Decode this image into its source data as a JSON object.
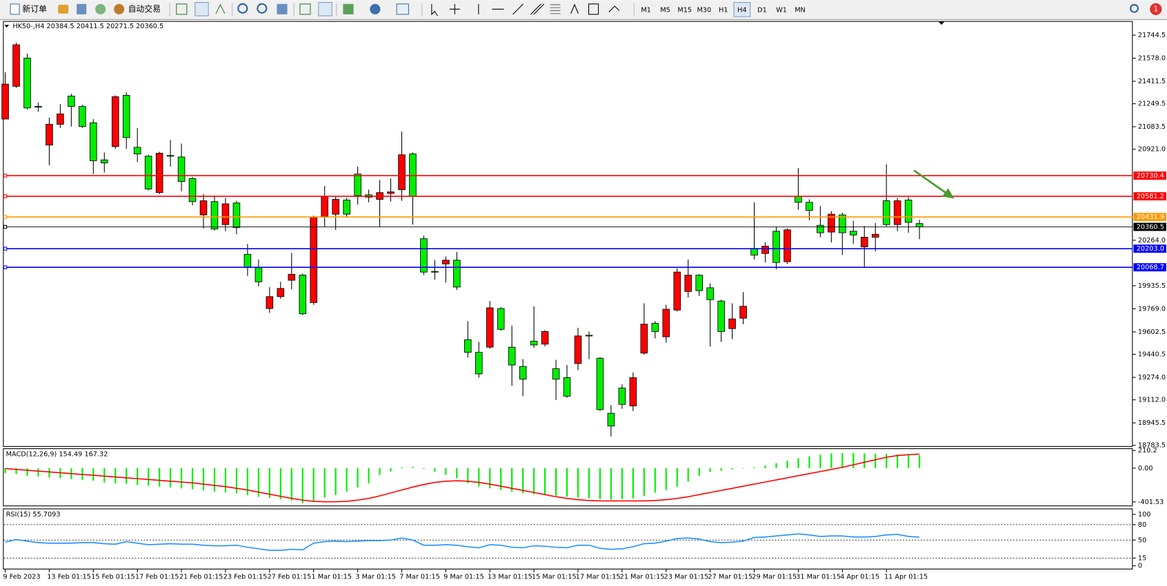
{
  "toolbar": {
    "new_order": "新订单",
    "auto_trading": "自动交易",
    "timeframes": [
      "M1",
      "M5",
      "M15",
      "M30",
      "H1",
      "H4",
      "D1",
      "W1",
      "MN"
    ],
    "active_timeframe": "H4",
    "notification_count": 1
  },
  "chart": {
    "header": "HK50-,H4  20384.5 20411.5 20271.5 20360.5",
    "up_color": "#ff0000",
    "down_color": "#00ee00",
    "ylim": [
      18772.7,
      21841.1
    ],
    "yticks": [
      21744.5,
      {
        "value": 21578,
        "label": "21578.0"
      },
      21411.5,
      21249.5,
      21083.5,
      {
        "value": 20921,
        "label": "20921.0"
      },
      {
        "value": 20264,
        "label": "20264.0"
      },
      19935.5,
      {
        "value": 19769,
        "label": "19769.0"
      },
      19602.5,
      19440.5,
      {
        "value": 19274,
        "label": "19274.0"
      },
      {
        "value": 19112,
        "label": "19112.0"
      },
      18945.5,
      18783.5
    ],
    "levels": [
      {
        "value": 20730.4,
        "color": "#ff0000"
      },
      {
        "value": 20581.2,
        "color": "#ff0000"
      },
      {
        "value": 20431.9,
        "color": "#ff9900"
      },
      {
        "value": 20360.5,
        "color": "#000000"
      },
      {
        "value": 20203,
        "label": "20203.0",
        "color": "#0000ff"
      },
      {
        "value": 20068.7,
        "color": "#0000ff"
      }
    ],
    "categories": [
      "9 Feb 2023",
      null,
      null,
      null,
      "13 Feb 01:15",
      null,
      null,
      null,
      "15 Feb 01:15",
      null,
      null,
      null,
      "17 Feb 01:15",
      null,
      null,
      null,
      "21 Feb 01:15",
      null,
      null,
      null,
      "23 Feb 01:15",
      null,
      null,
      null,
      "27 Feb 01:15",
      null,
      null,
      null,
      "1 Mar 01:15",
      null,
      null,
      null,
      "3 Mar 01:15",
      null,
      null,
      null,
      "7 Mar 01:15",
      null,
      null,
      null,
      "9 Mar 01:15",
      null,
      null,
      null,
      "13 Mar 01:15",
      null,
      null,
      null,
      "15 Mar 01:15",
      null,
      null,
      null,
      "17 Mar 01:15",
      null,
      null,
      null,
      "21 Mar 01:15",
      null,
      null,
      null,
      "23 Mar 01:15",
      null,
      null,
      null,
      "27 Mar 01:15",
      null,
      null,
      null,
      "29 Mar 01:15",
      null,
      null,
      null,
      "31 Mar 01:15",
      null,
      null,
      null,
      "4 Apr 01:15",
      null,
      null,
      null,
      "11 Apr 01:15",
      null,
      null,
      null
    ],
    "candles": {
      "open": [
        21139,
        21375,
        21579,
        21230,
        20951,
        21101,
        21305,
        21230,
        21112,
        20844,
        20940,
        21310,
        20935,
        20871,
        20608,
        20876,
        20865,
        20710,
        20447,
        20543,
        20377,
        20533,
        20162,
        20066,
        19771,
        19857,
        19975,
        20012,
        19814,
        20436,
        20452,
        20554,
        20742,
        20592,
        20559,
        20602,
        20629,
        20887,
        20275,
        20039,
        20093,
        20120,
        19546,
        19455,
        19492,
        19771,
        19492,
        19353,
        19535,
        19514,
        19337,
        19272,
        19374,
        19578,
        19412,
        19015,
        19197,
        19068,
        19449,
        19664,
        19567,
        19760,
        19894,
        20012,
        19921,
        19825,
        19626,
        19701,
        20205,
        20168,
        20329,
        20109,
        20581,
        20538,
        20372,
        20323,
        20447,
        20329,
        20216,
        20286,
        20549,
        20377,
        20554,
        20384.5
      ],
      "high": [
        21477,
        21691,
        21611,
        21257,
        21149,
        21246,
        21321,
        21241,
        21139,
        20897,
        21310,
        21332,
        21074,
        20881,
        20903,
        20989,
        20962,
        20720,
        20597,
        20586,
        20570,
        20549,
        20238,
        20125,
        19926,
        19964,
        20173,
        20023,
        20441,
        20656,
        20581,
        20570,
        20795,
        20629,
        20699,
        20710,
        21048,
        20897,
        20297,
        20120,
        20146,
        20179,
        19680,
        19530,
        19825,
        19782,
        19648,
        19406,
        19787,
        19615,
        19401,
        19363,
        19632,
        19605,
        19422,
        19074,
        19224,
        19310,
        19809,
        19680,
        19798,
        20061,
        20125,
        20018,
        19953,
        19835,
        19809,
        19889,
        20538,
        20248,
        20361,
        20350,
        20785,
        20559,
        20511,
        20474,
        20463,
        20404,
        20366,
        20388,
        20812,
        20570,
        20575,
        20411.5
      ],
      "low": [
        21139,
        21364,
        21208,
        21192,
        20806,
        21074,
        21085,
        21074,
        20742,
        20753,
        20924,
        20924,
        20828,
        20624,
        20597,
        20795,
        20618,
        20516,
        20350,
        20334,
        20329,
        20307,
        20007,
        19932,
        19739,
        19841,
        19910,
        19723,
        19798,
        20361,
        20339,
        20431,
        20522,
        20538,
        20361,
        20543,
        20549,
        20377,
        20012,
        19980,
        19959,
        19905,
        19417,
        19272,
        19481,
        19610,
        19213,
        19138,
        19487,
        19497,
        19111,
        19127,
        19326,
        19406,
        19031,
        18848,
        19047,
        19031,
        19438,
        19556,
        19524,
        19750,
        19851,
        19862,
        19497,
        19530,
        19551,
        19658,
        20125,
        20103,
        20055,
        20093,
        20484,
        20409,
        20286,
        20248,
        20157,
        20238,
        20066,
        20184,
        20361,
        20329,
        20318,
        20271.5
      ],
      "close": [
        21391,
        21675,
        21219,
        21225,
        21101,
        21176,
        21230,
        21085,
        20838,
        20822,
        21300,
        21005,
        20887,
        20634,
        20892,
        20871,
        20688,
        20543,
        20549,
        20345,
        20527,
        20356,
        20071,
        19964,
        19857,
        19916,
        20018,
        19733,
        20431,
        20581,
        20559,
        20452,
        20586,
        20575,
        20608,
        20613,
        20881,
        20581,
        20034,
        20034,
        20120,
        19926,
        19455,
        19299,
        19776,
        19621,
        19363,
        19261,
        19508,
        19605,
        19261,
        19138,
        19573,
        19573,
        19041,
        18923,
        19079,
        19272,
        19658,
        19605,
        19766,
        20034,
        20012,
        19900,
        19835,
        19605,
        19696,
        19787,
        20157,
        20221,
        20103,
        20339,
        20538,
        20479,
        20318,
        20452,
        20318,
        20302,
        20286,
        20307,
        20377,
        20549,
        20393,
        20360.5
      ]
    }
  },
  "macd": {
    "header": "MACD(12,26,9) 154.49 167.32",
    "ylim": [
      -444.5,
      227.4
    ],
    "yticks": [
      210.2,
      {
        "value": 0,
        "label": "0.00"
      },
      -401.53
    ],
    "histogram_color": "#00ee00",
    "signal_color": "#ff0000",
    "histogram": [
      -60,
      -70,
      -90,
      -100,
      -110,
      -120,
      -130,
      -140,
      -150,
      -170,
      -180,
      -185,
      -200,
      -210,
      -220,
      -230,
      -240,
      -250,
      -265,
      -280,
      -290,
      -300,
      -320,
      -340,
      -355,
      -370,
      -385,
      -415,
      -390,
      -350,
      -320,
      -280,
      -230,
      -180,
      -80,
      -40,
      10,
      15,
      -10,
      -40,
      -80,
      -120,
      -180,
      -220,
      -240,
      -260,
      -280,
      -300,
      -310,
      -320,
      -330,
      -340,
      -350,
      -360,
      -370,
      -375,
      -370,
      -360,
      -330,
      -290,
      -260,
      -220,
      -160,
      -90,
      -45,
      -30,
      -15,
      -5,
      10,
      30,
      60,
      90,
      120,
      140,
      160,
      175,
      180,
      180,
      175,
      170,
      170,
      165,
      160,
      154.49
    ],
    "signal": [
      -5,
      -15,
      -25,
      -35,
      -45,
      -55,
      -65,
      -75,
      -85,
      -95,
      -105,
      -115,
      -125,
      -135,
      -145,
      -155,
      -165,
      -175,
      -190,
      -205,
      -220,
      -240,
      -260,
      -285,
      -310,
      -335,
      -360,
      -380,
      -395,
      -400,
      -400,
      -395,
      -380,
      -360,
      -330,
      -295,
      -260,
      -225,
      -195,
      -170,
      -155,
      -150,
      -155,
      -170,
      -190,
      -215,
      -240,
      -265,
      -290,
      -315,
      -340,
      -360,
      -375,
      -385,
      -390,
      -390,
      -390,
      -390,
      -390,
      -385,
      -375,
      -360,
      -340,
      -315,
      -290,
      -265,
      -240,
      -215,
      -190,
      -165,
      -140,
      -115,
      -90,
      -65,
      -40,
      -15,
      10,
      40,
      70,
      100,
      130,
      150,
      160,
      167.32
    ]
  },
  "rsi": {
    "header": "RSI(15) 55.7093",
    "ylim": [
      -5.6,
      109.9
    ],
    "yticks": [
      100,
      80,
      50,
      15,
      0
    ],
    "color": "#1e90ff",
    "values": [
      46,
      51,
      48,
      45,
      44,
      44,
      44,
      45,
      45,
      43,
      42,
      47,
      44,
      41,
      42,
      43,
      42,
      42,
      40,
      39,
      39,
      40,
      36,
      33,
      30,
      30,
      32,
      31,
      44,
      47,
      48,
      47,
      48,
      49,
      49,
      50,
      54,
      50,
      40,
      40,
      41,
      40,
      37,
      35,
      41,
      40,
      36,
      35,
      39,
      38,
      36,
      35,
      40,
      40,
      34,
      32,
      33,
      37,
      43,
      44,
      48,
      53,
      54,
      52,
      47,
      45,
      46,
      48,
      55,
      56,
      58,
      60,
      62,
      60,
      57,
      58,
      58,
      56,
      56,
      57,
      60,
      61,
      57,
      55.7093
    ]
  }
}
